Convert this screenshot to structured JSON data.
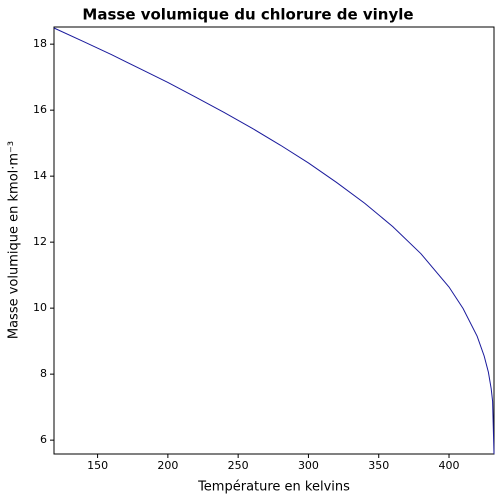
{
  "chart_data": {
    "type": "line",
    "title": "Masse volumique du chlorure de vinyle",
    "x_label": "Température en kelvins",
    "y_label": "Masse volumique en kmol·m⁻³",
    "x": [
      119,
      140,
      160,
      180,
      200,
      220,
      240,
      260,
      280,
      300,
      320,
      340,
      360,
      380,
      400,
      410,
      420,
      425,
      428,
      430,
      431,
      432
    ],
    "series": [
      {
        "color": "#1a1a9c",
        "values": [
          18.49,
          18.08,
          17.68,
          17.26,
          16.84,
          16.39,
          15.93,
          15.45,
          14.94,
          14.4,
          13.81,
          13.18,
          12.47,
          11.65,
          10.64,
          9.99,
          9.15,
          8.55,
          8.06,
          7.56,
          7.18,
          5.58
        ]
      }
    ],
    "xlim": [
      119,
      432
    ],
    "ylim": [
      5.58,
      18.52
    ],
    "xticks": [
      150,
      200,
      250,
      300,
      350,
      400
    ],
    "yticks": [
      6,
      8,
      10,
      12,
      14,
      16,
      18
    ],
    "grid": false
  }
}
